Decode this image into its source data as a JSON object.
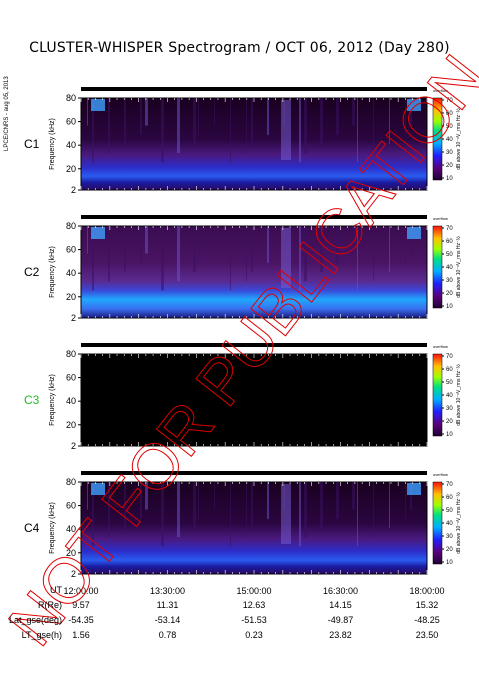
{
  "title": "CLUSTER-WHISPER Spectrogram / OCT 06, 2012 (Day 280)",
  "side_label": "LPCE/CNRS - aug 05, 2013",
  "watermark": "NOT FOR PUBLICATION",
  "chart_data": {
    "type": "heatmap",
    "panels": [
      {
        "name": "C1",
        "name_color": "#000000",
        "ylabel": "Frequency (kHz)",
        "state": "data"
      },
      {
        "name": "C2",
        "name_color": "#000000",
        "ylabel": "Frequency (kHz)",
        "state": "data"
      },
      {
        "name": "C3",
        "name_color": "#22bb22",
        "ylabel": "Frequency (kHz)",
        "state": "no data"
      },
      {
        "name": "C4",
        "name_color": "#000000",
        "ylabel": "Frequency (kHz)",
        "state": "data"
      }
    ],
    "y_ticks": [
      "80",
      "60",
      "40",
      "20",
      "2"
    ],
    "ylim": [
      2,
      80
    ],
    "colorbar": {
      "label": "dB above 10⁻⁸V_rms Hz⁻½",
      "top_label": "overflow",
      "ticks": [
        "70",
        "60",
        "50",
        "40",
        "30",
        "20",
        "10"
      ],
      "range": [
        10,
        70
      ]
    },
    "x_ticks": [
      "12:00:00",
      "13:30:00",
      "15:00:00",
      "16:30:00",
      "18:00:00"
    ],
    "xlim": [
      "12:00:00",
      "18:00:00"
    ]
  },
  "ephemeris": {
    "labels": [
      "UT",
      "R(Re)",
      "Lat_gse(deg)",
      "LT_gse(h)"
    ],
    "rows": [
      [
        "9.57",
        "11.31",
        "12.63",
        "14.15",
        "15.32"
      ],
      [
        "-54.35",
        "-53.14",
        "-51.53",
        "-49.87",
        "-48.25"
      ],
      [
        "1.56",
        "0.78",
        "0.23",
        "23.82",
        "23.50"
      ]
    ]
  }
}
